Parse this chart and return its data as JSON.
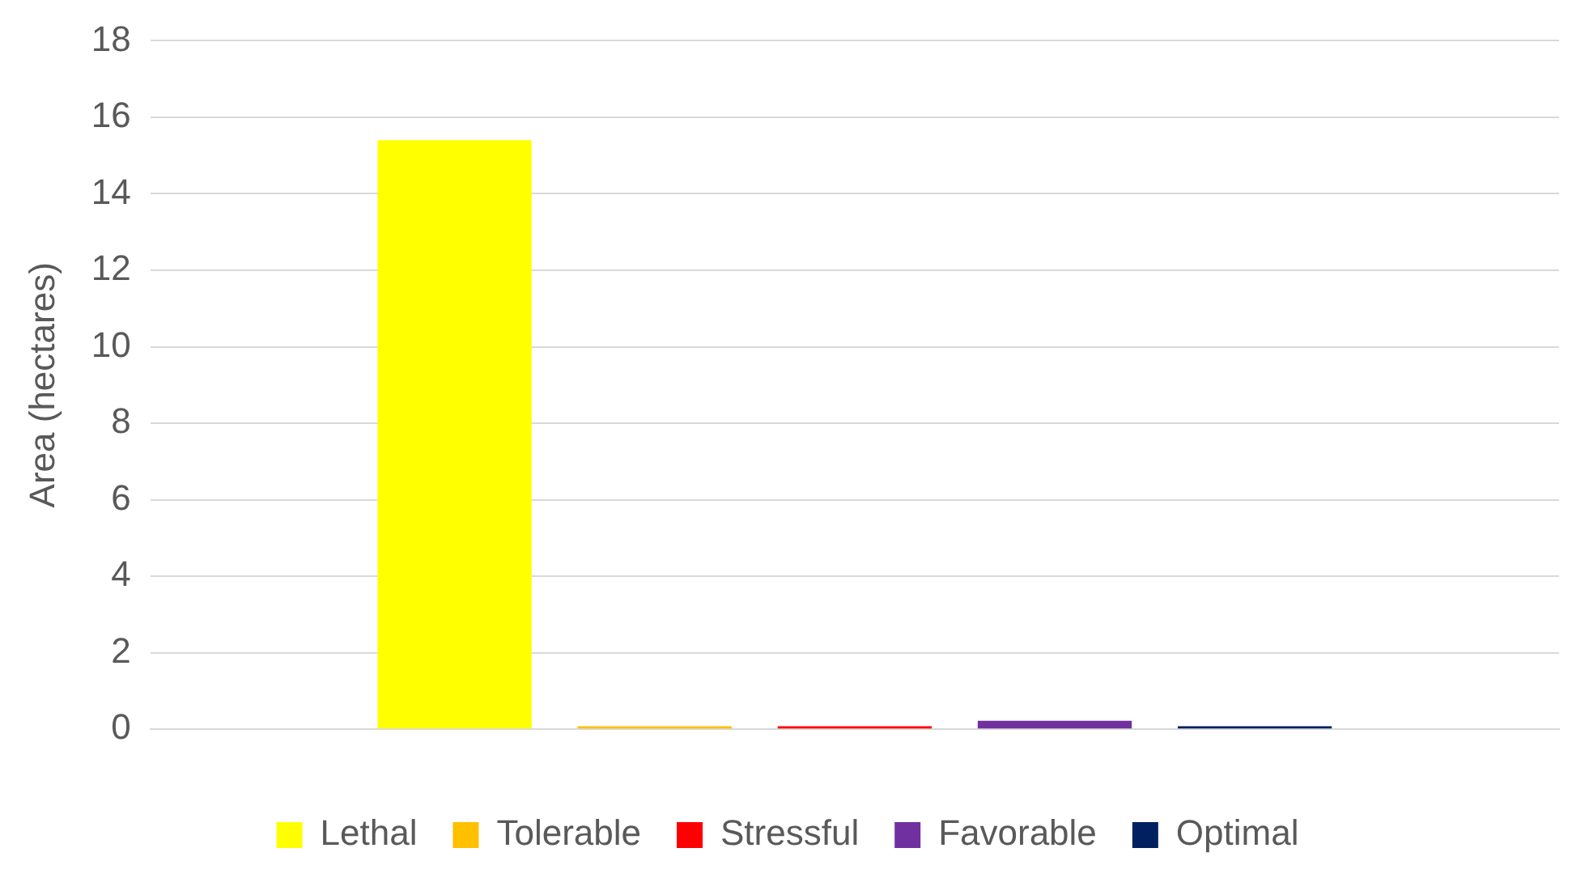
{
  "chart_data": {
    "type": "bar",
    "ylabel": "Area (hectares)",
    "categories": [
      null
    ],
    "series": [
      {
        "name": "Lethal",
        "color": "#ffff00",
        "values": [
          15.4
        ]
      },
      {
        "name": "Tolerable",
        "color": "#ffc000",
        "values": [
          0.08
        ]
      },
      {
        "name": "Stressful",
        "color": "#ff0000",
        "values": [
          0.08
        ]
      },
      {
        "name": "Favorable",
        "color": "#7030a0",
        "values": [
          0.22
        ]
      },
      {
        "name": "Optimal",
        "color": "#002060",
        "values": [
          0.08
        ]
      }
    ],
    "ylim": [
      0,
      18
    ],
    "yticks": [
      0,
      2,
      4,
      6,
      8,
      10,
      12,
      14,
      16,
      18
    ],
    "grid": "y",
    "legend": "bottom"
  }
}
